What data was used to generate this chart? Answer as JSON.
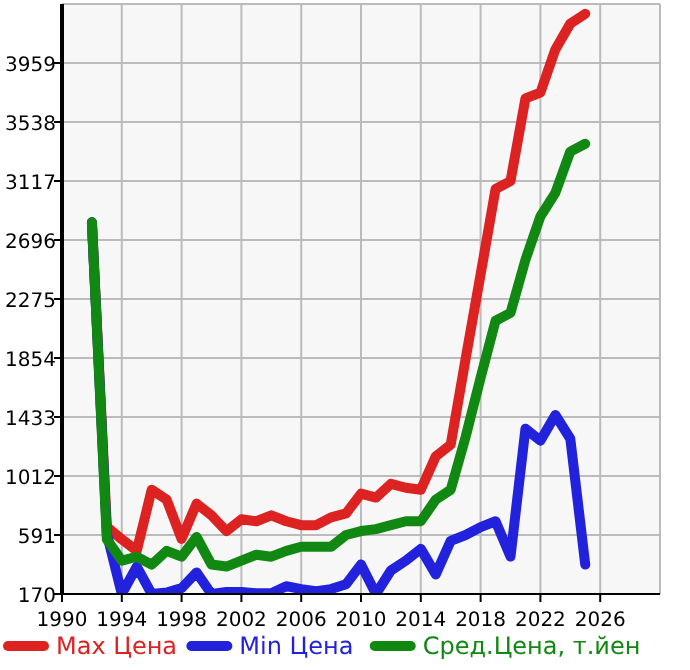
{
  "chart_data": {
    "type": "line",
    "x": [
      1992,
      1993,
      1994,
      1995,
      1996,
      1997,
      1998,
      1999,
      2000,
      2001,
      2002,
      2003,
      2004,
      2005,
      2006,
      2007,
      2008,
      2009,
      2010,
      2011,
      2012,
      2013,
      2014,
      2015,
      2016,
      2017,
      2018,
      2019,
      2020,
      2021,
      2022,
      2023,
      2024,
      2025
    ],
    "series": [
      {
        "name": "Max Цена",
        "color": "#dd2222",
        "values": [
          2822,
          650,
          560,
          479,
          914,
          843,
          563,
          815,
          731,
          619,
          703,
          689,
          731,
          689,
          661,
          661,
          717,
          745,
          886,
          858,
          956,
          928,
          914,
          1152,
          1236,
          1850,
          2450,
          3060,
          3116,
          3706,
          3748,
          4056,
          4240,
          4310
        ]
      },
      {
        "name": "Min Цена",
        "color": "#2222dd",
        "values": [
          2822,
          600,
          170,
          366,
          170,
          180,
          212,
          324,
          170,
          184,
          184,
          175,
          175,
          226,
          205,
          190,
          205,
          240,
          380,
          170,
          338,
          408,
          492,
          310,
          549,
          591,
          647,
          689,
          437,
          1349,
          1264,
          1447,
          1278,
          380
        ]
      },
      {
        "name": "Сред.Цена, т.йен",
        "color": "#118811",
        "values": [
          2822,
          560,
          408,
          436,
          380,
          478,
          436,
          577,
          380,
          366,
          408,
          450,
          436,
          478,
          507,
          507,
          507,
          591,
          619,
          633,
          661,
          689,
          689,
          843,
          914,
          1292,
          1713,
          2120,
          2176,
          2555,
          2864,
          3032,
          3327,
          3383
        ]
      }
    ],
    "xlim": [
      1990,
      2030
    ],
    "xticks": [
      1990,
      1994,
      1998,
      2002,
      2006,
      2010,
      2014,
      2018,
      2022,
      2026
    ],
    "ylim": [
      170,
      4380
    ],
    "yticks": [
      170,
      591,
      1012,
      1433,
      1854,
      2275,
      2696,
      3117,
      3538,
      3959
    ],
    "grid": true,
    "legend": "bottom",
    "marker": "none",
    "line_style": "solid"
  }
}
